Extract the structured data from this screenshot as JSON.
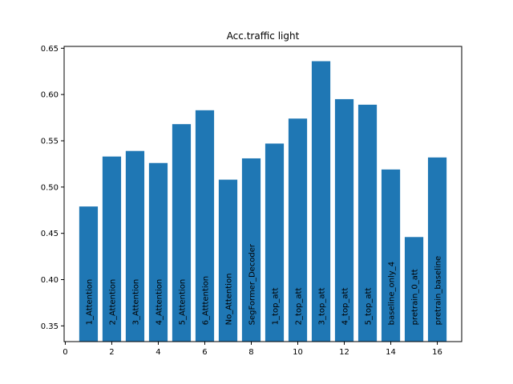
{
  "chart_data": {
    "type": "bar",
    "title": "Acc.traffic light",
    "xlabel": "",
    "ylabel": "",
    "bar_color": "#1f77b4",
    "xlim": [
      -0.05,
      17.05
    ],
    "ylim": [
      0.333,
      0.652
    ],
    "xticks": [
      0,
      2,
      4,
      6,
      8,
      10,
      12,
      14,
      16
    ],
    "yticks": [
      0.35,
      0.4,
      0.45,
      0.5,
      0.55,
      0.6,
      0.65
    ],
    "ytick_labels": [
      "0.35",
      "0.40",
      "0.45",
      "0.50",
      "0.55",
      "0.60",
      "0.65"
    ],
    "grid": false,
    "x": [
      1,
      2,
      3,
      4,
      5,
      6,
      7,
      8,
      9,
      10,
      11,
      12,
      13,
      14,
      15,
      16
    ],
    "labels": [
      "1_Attention",
      "2_Attention",
      "3_Attention",
      "4_Attention",
      "5_Attention",
      "6_Atttention",
      "No_Attention",
      "SegFormer_Decoder",
      "1_top_att",
      "2_top_att",
      "3_top_att",
      "4_top_att",
      "5_top_att",
      "baseline_only_4",
      "pretrain_0_att",
      "pretrain_baseline"
    ],
    "values": [
      0.479,
      0.533,
      0.539,
      0.526,
      0.568,
      0.583,
      0.508,
      0.531,
      0.547,
      0.574,
      0.636,
      0.595,
      0.589,
      0.519,
      0.446,
      0.532
    ]
  }
}
